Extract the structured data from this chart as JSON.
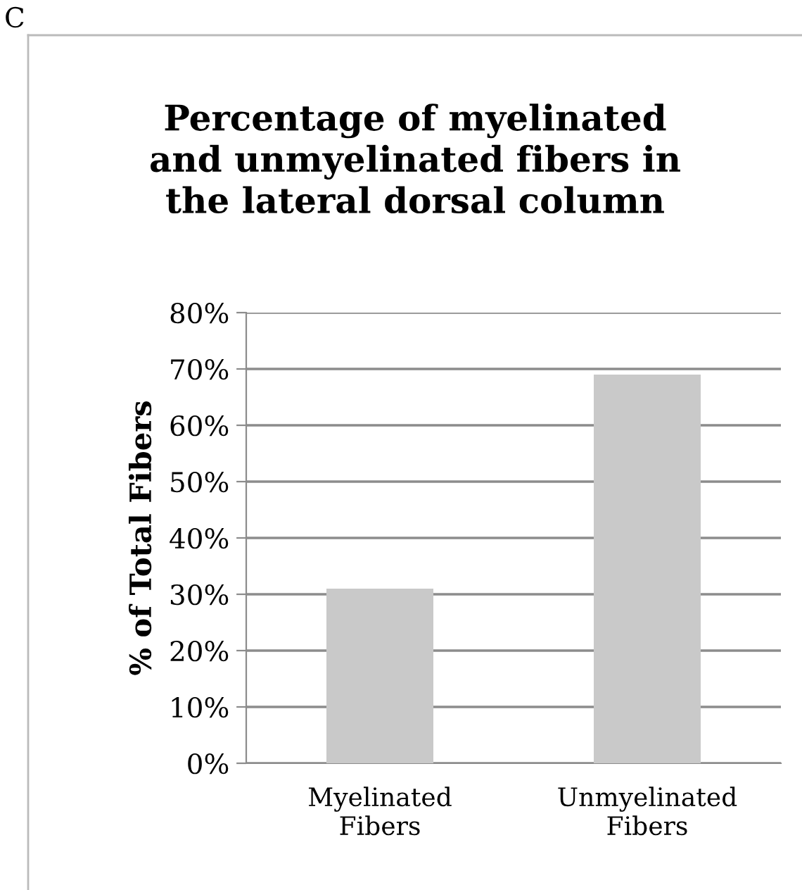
{
  "chart_data": {
    "type": "bar",
    "title": "Percentage of myelinated\nand unmyelinated fibers in\nthe lateral dorsal column",
    "ylabel": "% of Total Fibers",
    "categories": [
      "Myelinated\nFibers",
      "Unmyelinated\nFibers"
    ],
    "values": [
      31,
      69
    ],
    "color": "#c9c9c9",
    "ylim": [
      0,
      80
    ],
    "yticks": [
      {
        "value": 0,
        "label": "0%"
      },
      {
        "value": 10,
        "label": "10%"
      },
      {
        "value": 20,
        "label": "20%"
      },
      {
        "value": 30,
        "label": "30%"
      },
      {
        "value": 40,
        "label": "40%"
      },
      {
        "value": 50,
        "label": "50%"
      },
      {
        "value": 60,
        "label": "60%"
      },
      {
        "value": 70,
        "label": "70%"
      },
      {
        "value": 80,
        "label": "80%"
      }
    ],
    "grid": "y",
    "annotations": [
      "C"
    ]
  }
}
